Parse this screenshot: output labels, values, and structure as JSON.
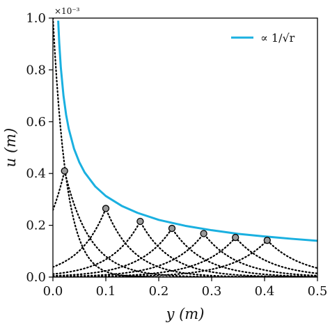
{
  "chart_data": {
    "type": "line",
    "title": "",
    "xlabel": "y (m)",
    "ylabel": "u (m)",
    "y_scale_label": "×10⁻³",
    "xlim": [
      0.0,
      0.5
    ],
    "ylim": [
      0.0,
      1.0
    ],
    "x_ticks": [
      "0.0",
      "0.1",
      "0.2",
      "0.3",
      "0.4",
      "0.5"
    ],
    "y_ticks": [
      "0.0",
      "0.2",
      "0.4",
      "0.6",
      "0.8",
      "1.0"
    ],
    "grid": false,
    "legend": {
      "position": "top-right",
      "entries": [
        "∝ 1/√r"
      ]
    },
    "colors": {
      "fit": "#1ab0e0",
      "profiles": "#000000",
      "markers_fill": "#9a9a9a"
    },
    "series": [
      {
        "name": "∝ 1/√r",
        "style": "solid",
        "x": [
          0.01,
          0.012,
          0.015,
          0.02,
          0.025,
          0.03,
          0.04,
          0.05,
          0.06,
          0.08,
          0.1,
          0.13,
          0.16,
          0.2,
          0.25,
          0.3,
          0.35,
          0.4,
          0.45,
          0.5
        ],
        "y": [
          0.99,
          0.903,
          0.808,
          0.7,
          0.626,
          0.572,
          0.495,
          0.443,
          0.404,
          0.35,
          0.313,
          0.275,
          0.248,
          0.221,
          0.198,
          0.181,
          0.167,
          0.157,
          0.148,
          0.14
        ]
      },
      {
        "name": "",
        "style": "markers",
        "x": [
          0.022,
          0.1,
          0.165,
          0.225,
          0.285,
          0.345,
          0.405
        ],
        "y": [
          0.41,
          0.265,
          0.215,
          0.188,
          0.168,
          0.153,
          0.142
        ]
      }
    ],
    "profiles": [
      {
        "peak_x": 0.0,
        "peak_y": 1.0,
        "halfwidth": 0.06
      },
      {
        "peak_x": 0.022,
        "peak_y": 0.41,
        "halfwidth": 0.11
      },
      {
        "peak_x": 0.1,
        "peak_y": 0.265,
        "halfwidth": 0.12
      },
      {
        "peak_x": 0.165,
        "peak_y": 0.215,
        "halfwidth": 0.13
      },
      {
        "peak_x": 0.225,
        "peak_y": 0.188,
        "halfwidth": 0.14
      },
      {
        "peak_x": 0.285,
        "peak_y": 0.168,
        "halfwidth": 0.145
      },
      {
        "peak_x": 0.345,
        "peak_y": 0.153,
        "halfwidth": 0.15
      },
      {
        "peak_x": 0.405,
        "peak_y": 0.142,
        "halfwidth": 0.155
      }
    ]
  }
}
